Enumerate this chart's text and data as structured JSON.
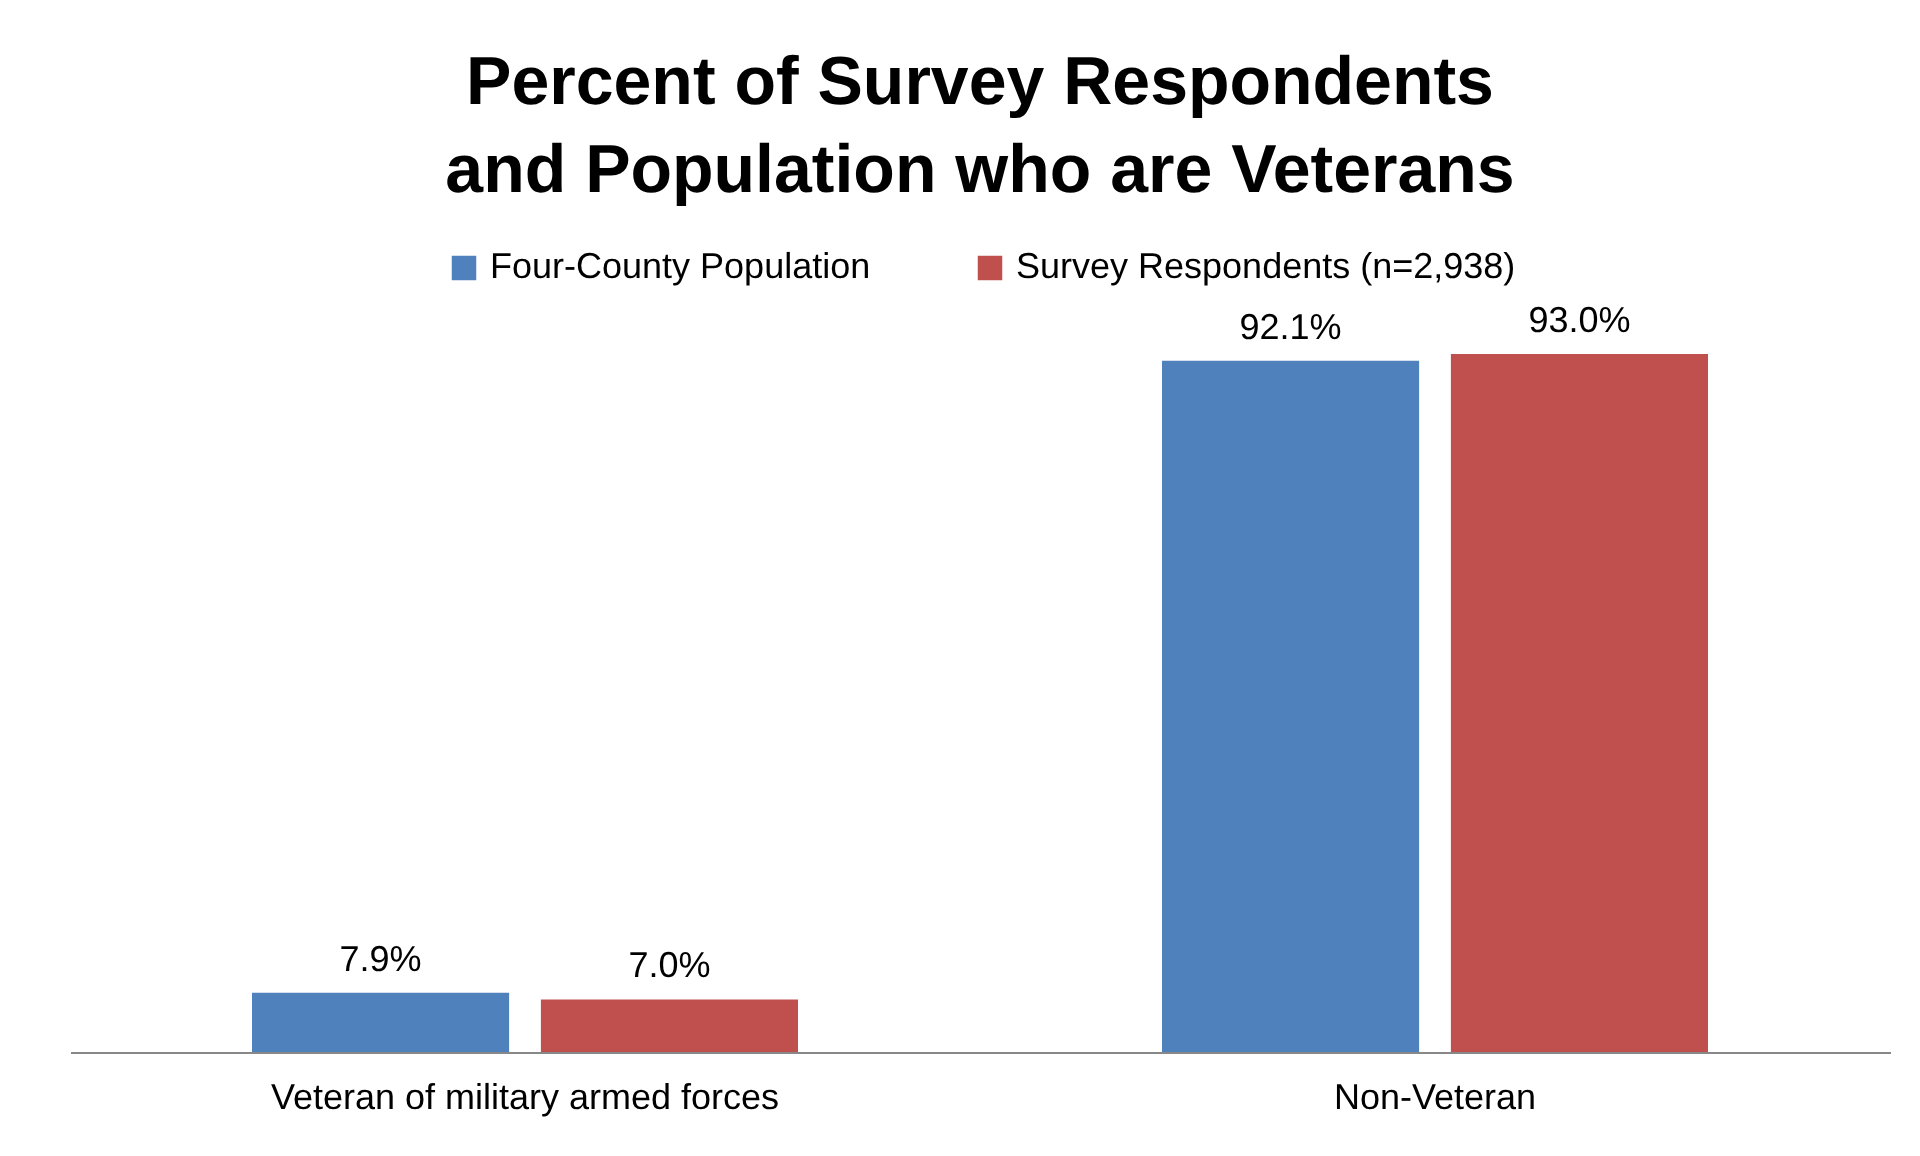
{
  "chart_data": {
    "type": "bar",
    "title": "Percent of Survey Respondents and Population who are Veterans",
    "categories": [
      "Veteran of military armed forces",
      "Non-Veteran"
    ],
    "series": [
      {
        "name": "Four-County Population",
        "color": "#4f81bd",
        "values": [
          7.9,
          92.1
        ],
        "value_labels": [
          "7.9%",
          "92.1%"
        ]
      },
      {
        "name": "Survey Respondents (n=2,938)",
        "color": "#c0504d",
        "values": [
          7.0,
          93.0
        ],
        "value_labels": [
          "7.0%",
          "93.0%"
        ]
      }
    ],
    "legend": "top"
  }
}
